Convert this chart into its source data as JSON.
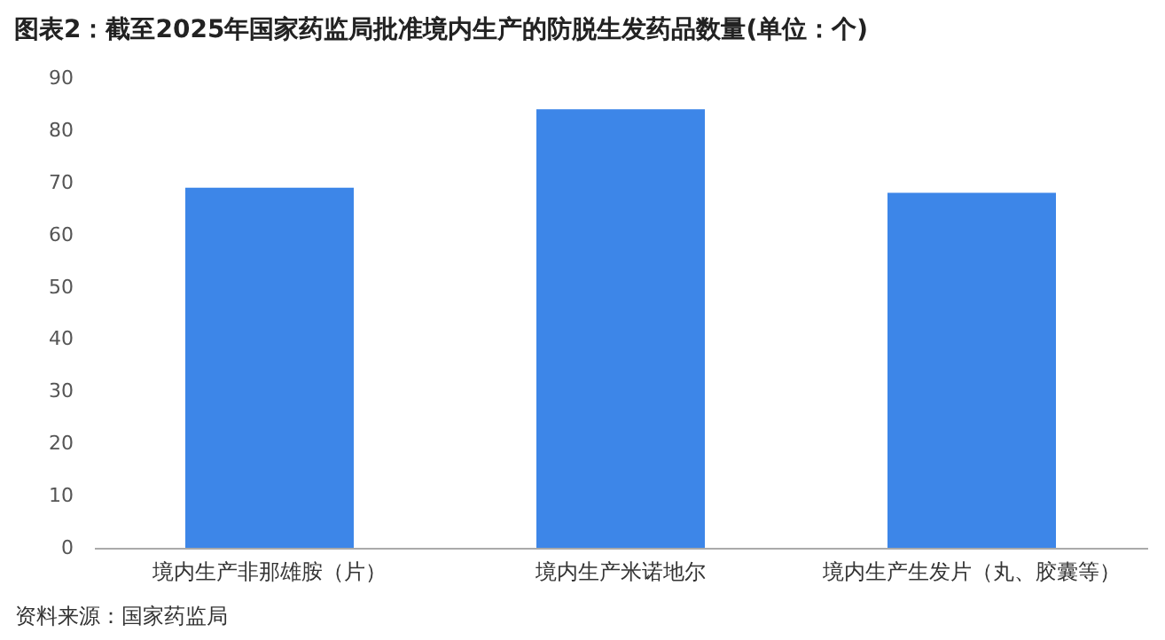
{
  "chart_data": {
    "type": "bar",
    "title": "图表2：截至2025年国家药监局批准境内生产的防脱生发药品数量(单位：个)",
    "categories": [
      "境内生产非那雄胺（片）",
      "境内生产米诺地尔",
      "境内生产生发片（丸、胶囊等）"
    ],
    "values": [
      69,
      84,
      68
    ],
    "color": "#3d86e8",
    "ylim": [
      0,
      90
    ],
    "yticks": [
      0,
      10,
      20,
      30,
      40,
      50,
      60,
      70,
      80,
      90
    ],
    "grid": false,
    "annotations": [
      "资料来源：国家药监局"
    ]
  }
}
